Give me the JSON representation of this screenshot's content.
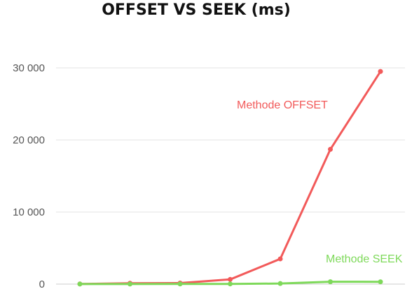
{
  "chart_data": {
    "type": "line",
    "title": "OFFSET VS SEEK (ms)",
    "xlabel": "",
    "ylabel": "",
    "ylim": [
      0,
      30000
    ],
    "yticks": [
      0,
      10000,
      20000,
      30000
    ],
    "ytick_labels": [
      "0",
      "10 000",
      "20 000",
      "30 000"
    ],
    "grid": true,
    "x": [
      1,
      2,
      3,
      4,
      5,
      6,
      7
    ],
    "series": [
      {
        "name": "Methode OFFSET",
        "color": "#f25a5a",
        "values": [
          20,
          120,
          150,
          650,
          3500,
          18700,
          29500
        ]
      },
      {
        "name": "Methode SEEK",
        "color": "#7ed95a",
        "values": [
          10,
          10,
          20,
          30,
          80,
          330,
          320
        ]
      }
    ]
  }
}
